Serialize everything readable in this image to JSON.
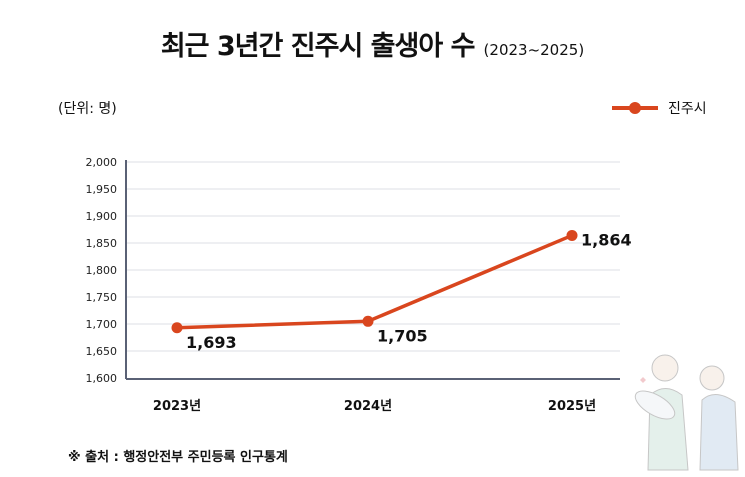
{
  "title": "최근 3년간 진주시 출생아 수",
  "subtitle": "(2023~2025)",
  "unit_label": "(단위: 명)",
  "source": "※ 출처 : 행정안전부 주민등록 인구통계",
  "colors": {
    "series": "#d9461e",
    "grid": "#dcdfe6",
    "axis": "#5a6175"
  },
  "illustration": "family-holding-baby-icon",
  "chart_data": {
    "type": "line",
    "title": "최근 3년간 진주시 출생아 수",
    "categories": [
      "2023년",
      "2024년",
      "2025년"
    ],
    "series": [
      {
        "name": "진주시",
        "values": [
          1693,
          1705,
          1864
        ],
        "labels": [
          "1,693",
          "1,705",
          "1,864"
        ]
      }
    ],
    "ylim": [
      1600,
      2000
    ],
    "yticks": [
      1600,
      1650,
      1700,
      1750,
      1800,
      1850,
      1900,
      1950,
      2000
    ],
    "ytick_labels": [
      "1,600",
      "1,650",
      "1,700",
      "1,750",
      "1,800",
      "1,850",
      "1,900",
      "1,950",
      "2,000"
    ],
    "grid": true,
    "legend": "top-right"
  }
}
